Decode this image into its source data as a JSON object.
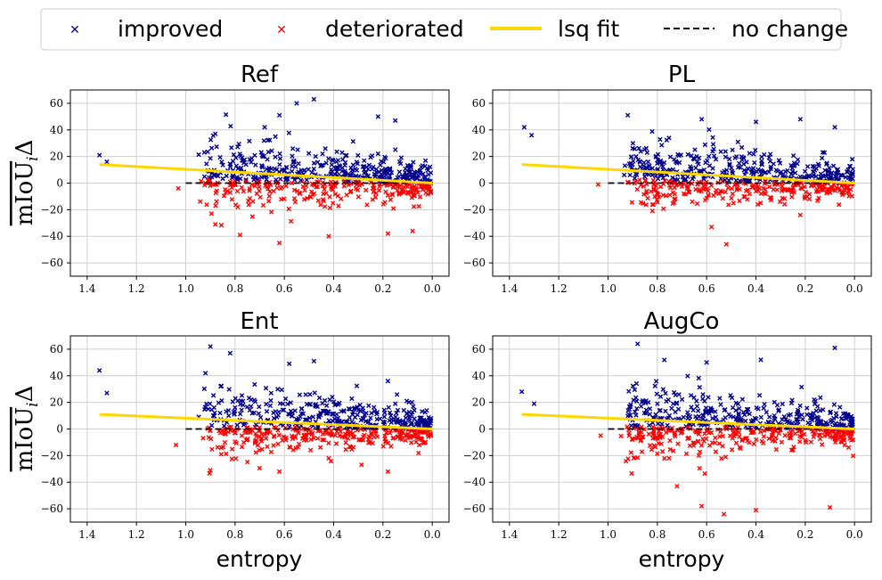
{
  "legend": {
    "items": [
      {
        "label": "improved",
        "kind": "marker",
        "color": "#00008b"
      },
      {
        "label": "deteriorated",
        "kind": "marker",
        "color": "#ff0000"
      },
      {
        "label": "lsq fit",
        "kind": "line",
        "color": "#ffd700"
      },
      {
        "label": "no change",
        "kind": "dashed",
        "color": "#000000"
      }
    ]
  },
  "colors": {
    "improved": "#00008b",
    "deteriorated": "#ff0000",
    "fit": "#ffd700",
    "nochange": "#000000"
  },
  "chart_data": [
    {
      "type": "scatter",
      "title": "Ref",
      "xlabel": "",
      "ylabel": "mIoU_iΔ",
      "xlim": [
        1.4,
        0.0
      ],
      "ylim": [
        -70,
        70
      ],
      "xticks": [
        "1.4",
        "1.2",
        "1.0",
        "0.8",
        "0.6",
        "0.4",
        "0.2",
        "0.0"
      ],
      "yticks": [
        "60",
        "40",
        "20",
        "0",
        "−20",
        "−40",
        "−60"
      ],
      "fit": {
        "x0": 1.35,
        "y0": 14,
        "x1": 0.0,
        "y1": 0
      },
      "nochange": {
        "x0": 1.0,
        "x1": 0.0,
        "y": 0
      },
      "improved_highlights": [
        [
          1.35,
          21
        ],
        [
          1.32,
          16
        ],
        [
          0.88,
          37
        ],
        [
          0.68,
          42
        ],
        [
          0.55,
          60
        ],
        [
          0.48,
          63
        ],
        [
          0.22,
          50
        ],
        [
          0.15,
          47
        ],
        [
          0.62,
          51
        ]
      ],
      "deteriorated_highlights": [
        [
          1.03,
          -4
        ],
        [
          0.88,
          -31
        ],
        [
          0.78,
          -39
        ],
        [
          0.62,
          -45
        ],
        [
          0.42,
          -40
        ],
        [
          0.18,
          -38
        ],
        [
          0.08,
          -36
        ]
      ]
    },
    {
      "type": "scatter",
      "title": "PL",
      "xlabel": "",
      "ylabel": "",
      "xlim": [
        1.4,
        0.0
      ],
      "ylim": [
        -70,
        70
      ],
      "xticks": [
        "1.4",
        "1.2",
        "1.0",
        "0.8",
        "0.6",
        "0.4",
        "0.2",
        "0.0"
      ],
      "yticks": [
        "60",
        "40",
        "20",
        "0",
        "−20",
        "−40",
        "−60"
      ],
      "fit": {
        "x0": 1.35,
        "y0": 14,
        "x1": 0.0,
        "y1": 0
      },
      "nochange": {
        "x0": 1.0,
        "x1": 0.0,
        "y": 0
      },
      "improved_highlights": [
        [
          1.34,
          42
        ],
        [
          1.31,
          36
        ],
        [
          0.92,
          51
        ],
        [
          0.62,
          48
        ],
        [
          0.4,
          46
        ],
        [
          0.22,
          48
        ],
        [
          0.08,
          42
        ]
      ],
      "deteriorated_highlights": [
        [
          1.04,
          -1
        ],
        [
          0.82,
          -21
        ],
        [
          0.52,
          -46
        ],
        [
          0.58,
          -33
        ],
        [
          0.22,
          -24
        ]
      ]
    },
    {
      "type": "scatter",
      "title": "Ent",
      "xlabel": "entropy",
      "ylabel": "mIoU_iΔ",
      "xlim": [
        1.4,
        0.0
      ],
      "ylim": [
        -70,
        70
      ],
      "xticks": [
        "1.4",
        "1.2",
        "1.0",
        "0.8",
        "0.6",
        "0.4",
        "0.2",
        "0.0"
      ],
      "yticks": [
        "60",
        "40",
        "20",
        "0",
        "−20",
        "−40",
        "−60"
      ],
      "fit": {
        "x0": 1.35,
        "y0": 11,
        "x1": 0.0,
        "y1": 0
      },
      "nochange": {
        "x0": 1.0,
        "x1": 0.0,
        "y": 0
      },
      "improved_highlights": [
        [
          1.35,
          44
        ],
        [
          1.32,
          27
        ],
        [
          0.9,
          62
        ],
        [
          0.92,
          42
        ],
        [
          0.82,
          57
        ],
        [
          0.58,
          49
        ],
        [
          0.48,
          51
        ],
        [
          0.18,
          36
        ]
      ],
      "deteriorated_highlights": [
        [
          1.04,
          -12
        ],
        [
          0.9,
          -31
        ],
        [
          0.62,
          -32
        ],
        [
          0.42,
          -22
        ],
        [
          0.18,
          -32
        ]
      ]
    },
    {
      "type": "scatter",
      "title": "AugCo",
      "xlabel": "entropy",
      "ylabel": "",
      "xlim": [
        1.4,
        0.0
      ],
      "ylim": [
        -70,
        70
      ],
      "xticks": [
        "1.4",
        "1.2",
        "1.0",
        "0.8",
        "0.6",
        "0.4",
        "0.2",
        "0.0"
      ],
      "yticks": [
        "60",
        "40",
        "20",
        "0",
        "−20",
        "−40",
        "−60"
      ],
      "fit": {
        "x0": 1.35,
        "y0": 11,
        "x1": 0.0,
        "y1": 0
      },
      "nochange": {
        "x0": 1.0,
        "x1": 0.0,
        "y": 0
      },
      "improved_highlights": [
        [
          1.35,
          28
        ],
        [
          1.3,
          19
        ],
        [
          0.88,
          64
        ],
        [
          0.6,
          50
        ],
        [
          0.38,
          52
        ],
        [
          0.08,
          61
        ]
      ],
      "deteriorated_highlights": [
        [
          1.03,
          -5
        ],
        [
          0.72,
          -43
        ],
        [
          0.62,
          -58
        ],
        [
          0.53,
          -64
        ],
        [
          0.4,
          -61
        ],
        [
          0.1,
          -59
        ]
      ]
    }
  ]
}
